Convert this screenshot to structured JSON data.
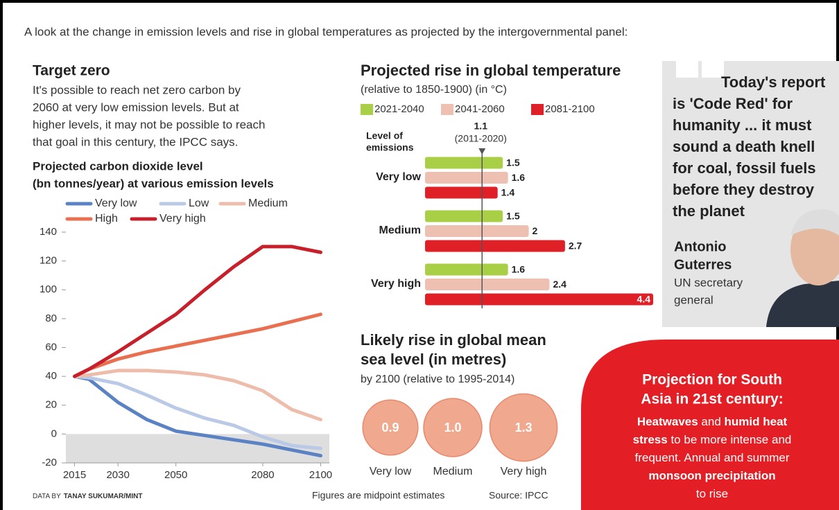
{
  "intro": "A look at the change in emission levels and rise in global temperatures as projected by the intergovernmental panel:",
  "chart_data": [
    {
      "type": "line",
      "title": "Target zero",
      "subtitle": [
        "It's possible to reach net zero carbon by",
        "2060 at very low emission levels. But at",
        "higher levels, it may not be possible to reach",
        "that goal in this century, the IPCC says."
      ],
      "y_label": [
        "Projected carbon dioxide level",
        "(bn tonnes/year) at various emission levels"
      ],
      "x": [
        2015,
        2020,
        2030,
        2040,
        2050,
        2060,
        2070,
        2080,
        2090,
        2100
      ],
      "xlim": [
        2012,
        2103
      ],
      "xticks": [
        2015,
        2030,
        2050,
        2080,
        2100
      ],
      "ylim": [
        -20,
        140
      ],
      "yticks": [
        -20,
        0,
        20,
        40,
        60,
        80,
        100,
        120,
        140
      ],
      "series": [
        {
          "name": "Very low",
          "color": "#5b83c4",
          "values": [
            40,
            38,
            22,
            10,
            2,
            -1,
            -4,
            -7,
            -11,
            -15
          ]
        },
        {
          "name": "Low",
          "color": "#b9c9e6",
          "values": [
            40,
            39,
            35,
            27,
            18,
            11,
            6,
            -2,
            -8,
            -10
          ]
        },
        {
          "name": "Medium",
          "color": "#eebcaa",
          "values": [
            40,
            41,
            44,
            44,
            43,
            41,
            37,
            30,
            17,
            10
          ]
        },
        {
          "name": "High",
          "color": "#e86f50",
          "values": [
            40,
            45,
            52,
            57,
            61,
            65,
            69,
            73,
            78,
            83
          ]
        },
        {
          "name": "Very high",
          "color": "#c8202a",
          "values": [
            40,
            45,
            57,
            70,
            83,
            100,
            116,
            130,
            130,
            126
          ]
        }
      ]
    },
    {
      "type": "hbar",
      "title": "Projected rise in global temperature",
      "subtitle": "(relative to 1850-1900) (in °C)",
      "y_label": [
        "Level of",
        "emissions"
      ],
      "categories": [
        "Very low",
        "Medium",
        "Very high"
      ],
      "xlim": [
        0,
        4.4
      ],
      "reference": {
        "value": 1.1,
        "label": "(2011-2020)"
      },
      "series": [
        {
          "name": "2021-2040",
          "color": "#a8cf45",
          "values": [
            1.5,
            1.5,
            1.6
          ]
        },
        {
          "name": "2041-2060",
          "color": "#eec0b1",
          "values": [
            1.6,
            2,
            2.4
          ]
        },
        {
          "name": "2081-2100",
          "color": "#e02027",
          "values": [
            1.4,
            2.7,
            4.4
          ]
        }
      ]
    },
    {
      "type": "bubble",
      "title": [
        "Likely rise in global mean",
        "sea level (in metres)"
      ],
      "subtitle": "by 2100 (relative to 1995-2014)",
      "categories": [
        "Very low",
        "Medium",
        "Very high"
      ],
      "values": [
        0.9,
        1.0,
        1.3
      ],
      "value_labels": [
        "0.9",
        "1.0",
        "1.3"
      ],
      "color": "#f0a98e"
    }
  ],
  "quote": {
    "text": [
      "Today's report",
      "is 'Code Red' for",
      "humanity ... it must",
      "sound a death knell",
      "for coal, fossil fuels",
      "before they destroy",
      "the planet"
    ],
    "name": [
      "Antonio",
      "Guterres"
    ],
    "role": [
      "UN secretary",
      "general"
    ]
  },
  "projection": {
    "title": [
      "Projection for South",
      "Asia in 21st century:"
    ],
    "body": [
      [
        {
          "text": "Heatwaves",
          "bold": true
        },
        {
          "text": " and ",
          "bold": false
        },
        {
          "text": "humid heat",
          "bold": true
        }
      ],
      [
        {
          "text": "stress",
          "bold": true
        },
        {
          "text": " to be more intense and",
          "bold": false
        }
      ],
      [
        {
          "text": "frequent. Annual and summer",
          "bold": false
        }
      ],
      [
        {
          "text": "monsoon precipitation",
          "bold": true
        }
      ],
      [
        {
          "text": "to rise",
          "bold": false
        }
      ]
    ]
  },
  "footer": {
    "credit_prefix": "DATA BY",
    "credit_name": "TANAY SUKUMAR/MINT",
    "note": "Figures are midpoint estimates",
    "source": "Source: IPCC"
  }
}
